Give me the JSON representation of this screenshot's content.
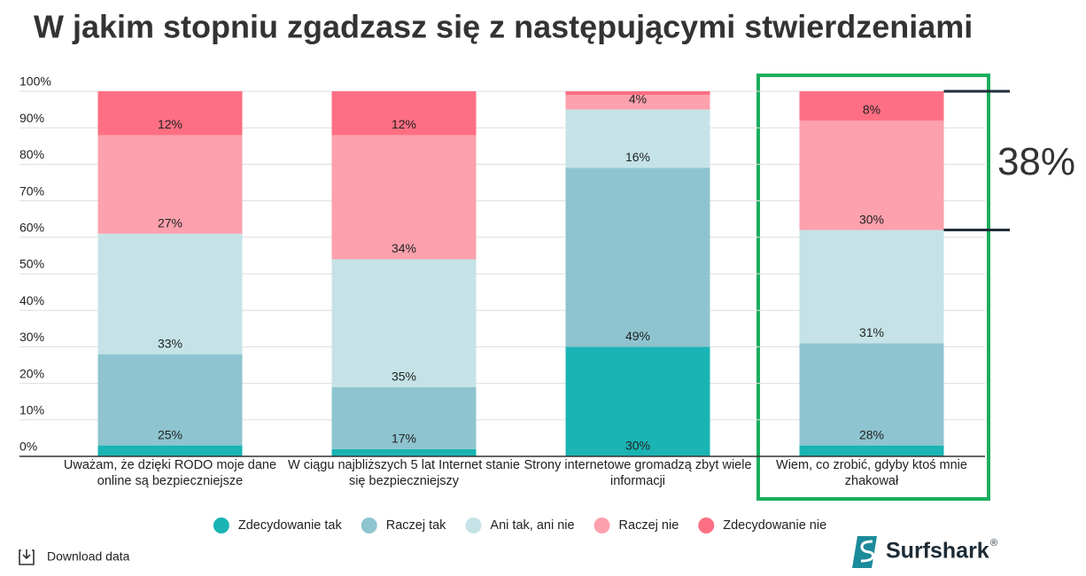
{
  "chart_data": {
    "type": "stacked-bar",
    "title": "W jakim stopniu zgadzasz się z następującymi stwierdzeniami",
    "categories": [
      "Uważam, że dzięki RODO moje dane online są bezpieczniejsze",
      "W ciągu najbliższych 5 lat Internet stanie się bezpieczniejszy",
      "Strony internetowe gromadzą zbyt wiele informacji",
      "Wiem, co zrobić, gdyby ktoś mnie zhakował"
    ],
    "series": [
      {
        "name": "Zdecydowanie tak",
        "color": "#1ab4b4",
        "values": [
          3,
          2,
          30,
          3
        ],
        "value_labels": [
          null,
          null,
          "30%",
          null
        ]
      },
      {
        "name": "Raczej tak",
        "color": "#8ec4cf",
        "values": [
          25,
          17,
          49,
          28
        ],
        "value_labels": [
          "25%",
          "17%",
          "49%",
          "28%"
        ]
      },
      {
        "name": "Ani tak, ani nie",
        "color": "#c5e3e7",
        "values": [
          33,
          35,
          16,
          31
        ],
        "value_labels": [
          "33%",
          "35%",
          "16%",
          "31%"
        ]
      },
      {
        "name": "Raczej nie",
        "color": "#fca1ad",
        "values": [
          27,
          34,
          4,
          30
        ],
        "value_labels": [
          "27%",
          "34%",
          "4%",
          "30%"
        ]
      },
      {
        "name": "Zdecydowanie nie",
        "color": "#fe6f83",
        "values": [
          12,
          12,
          1,
          8
        ],
        "value_labels": [
          "12%",
          "12%",
          null,
          "8%"
        ]
      }
    ],
    "ylim": [
      0,
      100
    ],
    "yticks": [
      {
        "value": 0,
        "label": "0%"
      },
      {
        "value": 10,
        "label": "10%"
      },
      {
        "value": 20,
        "label": "20%"
      },
      {
        "value": 30,
        "label": "30%"
      },
      {
        "value": 40,
        "label": "40%"
      },
      {
        "value": 50,
        "label": "50%"
      },
      {
        "value": 60,
        "label": "60%"
      },
      {
        "value": 70,
        "label": "70%"
      },
      {
        "value": 80,
        "label": "80%"
      },
      {
        "value": 90,
        "label": "90%"
      },
      {
        "value": 100,
        "label": "100%"
      }
    ],
    "grid": true,
    "annotation": "38%",
    "download": "Download data",
    "brand": "Surfshark",
    "brand_mark": "®"
  }
}
